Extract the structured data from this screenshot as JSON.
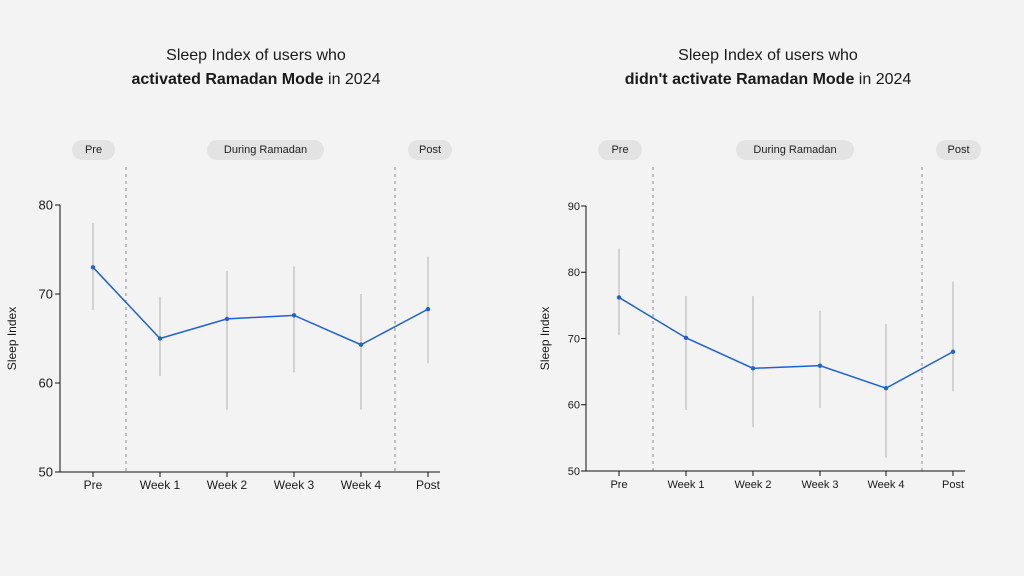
{
  "chart_data": [
    {
      "type": "line",
      "title_prefix": "Sleep Index of users who",
      "title_bold": "activated Ramadan Mode",
      "title_suffix": " in 2024",
      "ylabel": "Sleep Index",
      "xlabel": "",
      "ylim": [
        50,
        80
      ],
      "yticks": [
        50,
        60,
        70,
        80
      ],
      "categories": [
        "Pre",
        "Week 1",
        "Week 2",
        "Week 3",
        "Week 4",
        "Post"
      ],
      "series": [
        {
          "values": [
            73,
            65,
            67.2,
            67.6,
            64.3,
            68.3
          ],
          "error_low": [
            68.2,
            60.8,
            57,
            61.2,
            57,
            62.2
          ],
          "error_high": [
            78,
            69.7,
            72.6,
            73.1,
            70,
            74.2
          ]
        }
      ],
      "phases": [
        "Pre",
        "During Ramadan",
        "Post"
      ],
      "color": "#1f62d1"
    },
    {
      "type": "line",
      "title_prefix": "Sleep Index of users who",
      "title_bold": "didn't activate Ramadan Mode",
      "title_suffix": " in 2024",
      "ylabel": "Sleep Index",
      "xlabel": "",
      "ylim": [
        50,
        90
      ],
      "yticks": [
        50,
        60,
        70,
        80,
        90
      ],
      "categories": [
        "Pre",
        "Week 1",
        "Week 2",
        "Week 3",
        "Week 4",
        "Post"
      ],
      "series": [
        {
          "values": [
            76.2,
            70.1,
            65.5,
            65.9,
            62.5,
            68
          ],
          "error_low": [
            70.5,
            59.2,
            56.6,
            59.5,
            52,
            62
          ],
          "error_high": [
            83.6,
            76.4,
            76.4,
            74.2,
            72.2,
            78.6
          ]
        }
      ],
      "phases": [
        "Pre",
        "During Ramadan",
        "Post"
      ],
      "color": "#1f62d1"
    }
  ]
}
